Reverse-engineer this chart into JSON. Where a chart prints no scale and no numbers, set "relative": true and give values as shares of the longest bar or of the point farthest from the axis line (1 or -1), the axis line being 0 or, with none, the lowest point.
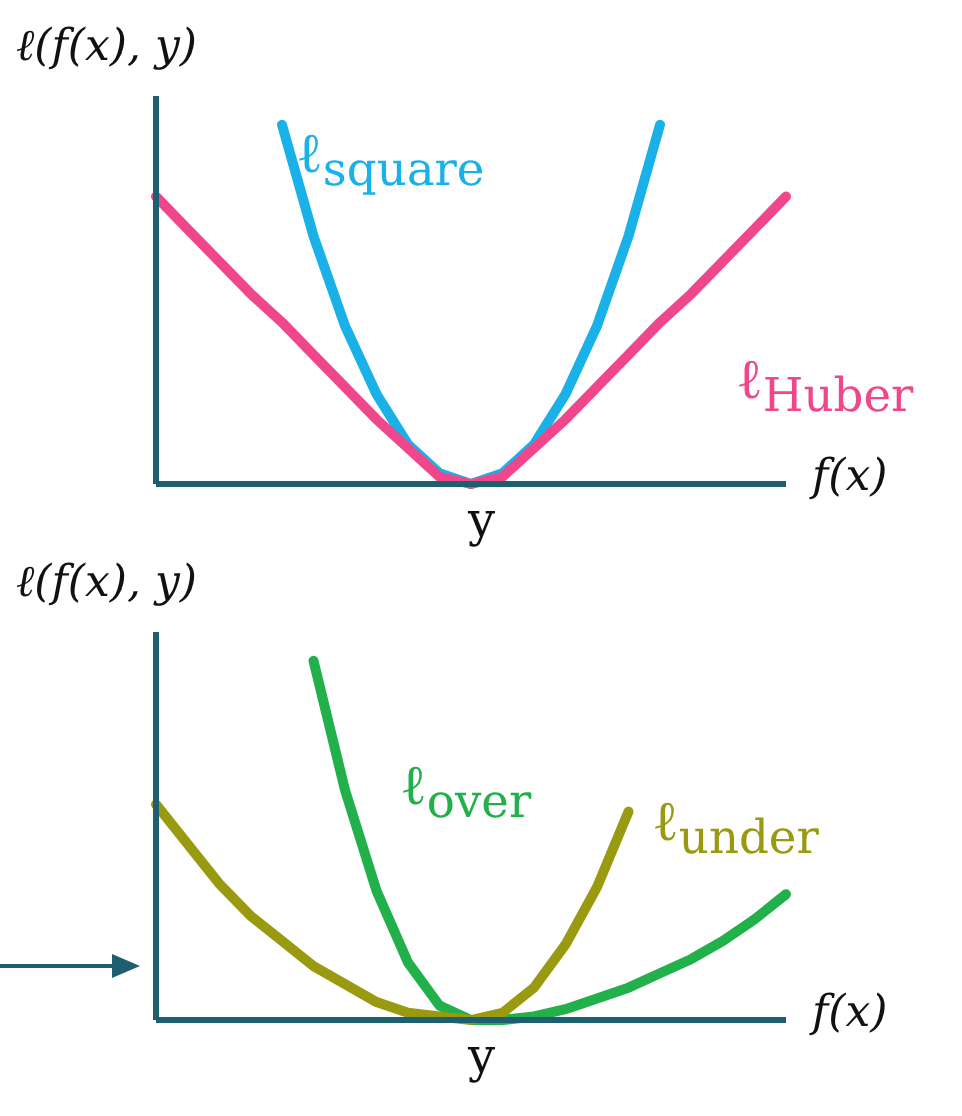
{
  "chart_data": [
    {
      "type": "line",
      "relative": true,
      "ylabel": "ℓ(f(x), y)",
      "xlabel": "f(x)",
      "annotations": [
        "y"
      ],
      "categories": [
        null,
        null,
        null,
        null,
        null,
        null,
        null,
        null,
        null,
        null,
        null,
        null,
        null,
        null,
        null,
        null,
        null,
        null,
        null,
        null,
        null
      ],
      "series": [
        {
          "name": "ℓ$_{square}$",
          "color": "#1ab0e8",
          "values": [
            null,
            null,
            null,
            null,
            1,
            0.69,
            0.44,
            0.25,
            0.11,
            0.03,
            0,
            0.03,
            0.11,
            0.25,
            0.44,
            0.69,
            1,
            null,
            null,
            null,
            null
          ]
        },
        {
          "name": "ℓ$_{Huber}$",
          "color": "#f0468c",
          "values": [
            0.8,
            0.71,
            0.62,
            0.53,
            0.45,
            0.36,
            0.27,
            0.18,
            0.1,
            0.02,
            0,
            0.02,
            0.1,
            0.18,
            0.27,
            0.36,
            0.45,
            0.53,
            0.62,
            0.71,
            0.8
          ]
        }
      ]
    },
    {
      "type": "line",
      "relative": true,
      "ylabel": "ℓ(f(x), y)",
      "xlabel": "f(x)",
      "annotations": [
        "y"
      ],
      "categories": [
        null,
        null,
        null,
        null,
        null,
        null,
        null,
        null,
        null,
        null,
        null,
        null,
        null,
        null,
        null,
        null,
        null,
        null,
        null,
        null,
        null
      ],
      "series": [
        {
          "name": "ℓ$_{over}$",
          "color": "#22b04b",
          "values": [
            null,
            null,
            null,
            null,
            null,
            1,
            0.64,
            0.36,
            0.16,
            0.04,
            0,
            0,
            0.01,
            0.03,
            0.06,
            0.09,
            0.13,
            0.17,
            0.22,
            0.28,
            0.35
          ]
        },
        {
          "name": "ℓ$_{under}$",
          "color": "#9a9a10",
          "values": [
            0.6,
            0.49,
            0.38,
            0.29,
            0.22,
            0.15,
            0.1,
            0.05,
            0.02,
            0.01,
            0,
            0.02,
            0.09,
            0.21,
            0.37,
            0.58,
            null,
            null,
            null,
            null,
            null
          ]
        }
      ]
    }
  ]
}
